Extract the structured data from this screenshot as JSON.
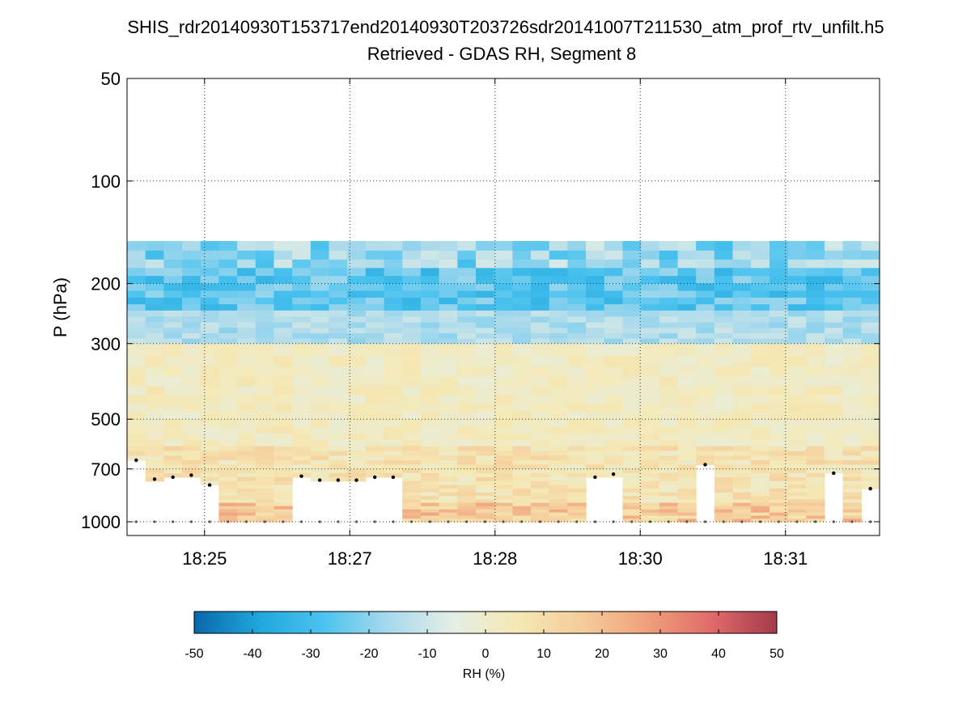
{
  "header": {
    "title_line1": "SHIS_rdr20140930T153717end20140930T203726sdr20141007T211530_atm_prof_rtv_unfilt.h5",
    "title_line2": "Retrieved - GDAS RH, Segment 8"
  },
  "chart_data": {
    "type": "heatmap",
    "title": "SHIS_rdr20140930T153717end20140930T203726sdr20141007T211530_atm_prof_rtv_unfilt.h5",
    "subtitle": "Retrieved - GDAS RH, Segment 8",
    "xlabel": "",
    "ylabel": "P (hPa)",
    "yscale": "log",
    "yreversed": true,
    "ylim": [
      50,
      1100
    ],
    "ytick_values": [
      50,
      100,
      200,
      300,
      500,
      700,
      1000
    ],
    "ytick_labels": [
      "50",
      "100",
      "200",
      "300",
      "500",
      "700",
      "1000"
    ],
    "xtick_labels": [
      "18:25",
      "18:27",
      "18:28",
      "18:30",
      "18:31"
    ],
    "xtick_fraction": [
      0.103,
      0.296,
      0.489,
      0.682,
      0.875
    ],
    "grid": true,
    "n_columns": 41,
    "data_top_pressure": 150,
    "surface_pressure": 1000,
    "colorbar": {
      "label": "RH (%)",
      "vmin": -50,
      "vmax": 50,
      "tick_values": [
        -50,
        -40,
        -30,
        -20,
        -10,
        0,
        10,
        20,
        30,
        40,
        50
      ],
      "tick_labels": [
        "-50",
        "-40",
        "-30",
        "-20",
        "-10",
        "0",
        "10",
        "20",
        "30",
        "40",
        "50"
      ],
      "colormap": [
        "#0868ac",
        "#1fa6dc",
        "#4cc3ef",
        "#a8d9ec",
        "#e4eee4",
        "#f5e8b4",
        "#f5cc9a",
        "#f0a07a",
        "#e06a6a",
        "#a33a4a"
      ]
    },
    "cloud_top_pressure": [
      660,
      750,
      740,
      730,
      780,
      null,
      null,
      null,
      null,
      735,
      755,
      755,
      755,
      740,
      740,
      null,
      null,
      null,
      null,
      null,
      null,
      null,
      null,
      null,
      null,
      740,
      725,
      null,
      null,
      null,
      null,
      680,
      null,
      null,
      null,
      null,
      null,
      null,
      720,
      null,
      800
    ],
    "surface_marker_pressure": 1000
  }
}
